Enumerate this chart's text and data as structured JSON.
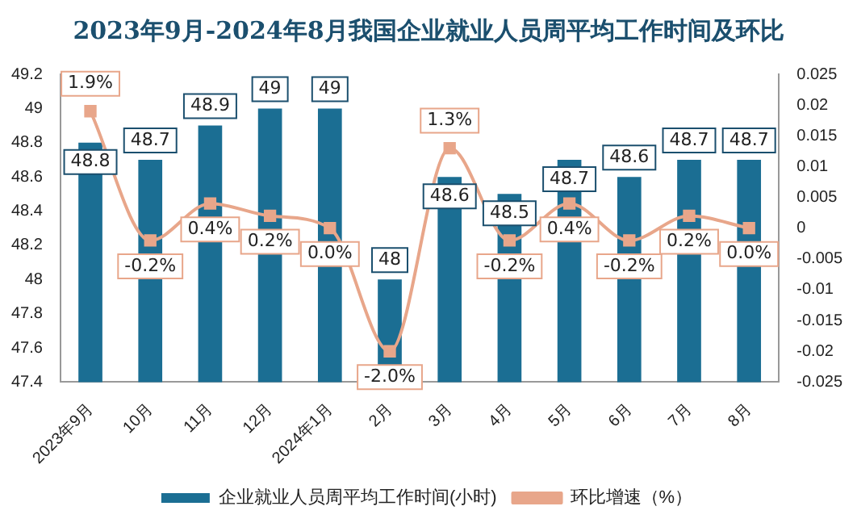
{
  "chart_data": {
    "type": "bar",
    "title": "2023年9月-2024年8月我国企业就业人员周平均工作时间及环比",
    "categories": [
      "2023年9月",
      "10月",
      "11月",
      "12月",
      "2024年1月",
      "2月",
      "3月",
      "4月",
      "5月",
      "6月",
      "7月",
      "8月"
    ],
    "series": [
      {
        "name": "企业就业人员周平均工作时间(小时)",
        "color": "#1b6e93",
        "values": [
          48.8,
          48.7,
          48.9,
          49,
          49,
          48,
          48.6,
          48.5,
          48.7,
          48.6,
          48.7,
          48.7
        ],
        "value_labels": [
          "48.8",
          "48.7",
          "48.9",
          "49",
          "49",
          "48",
          "48.6",
          "48.5",
          "48.7",
          "48.6",
          "48.7",
          "48.7"
        ]
      },
      {
        "name": "环比增速（%）",
        "type": "line",
        "axis": "y2",
        "color": "#e8a68a",
        "values": [
          0.019,
          -0.002,
          0.004,
          0.002,
          0,
          -0.02,
          0.013,
          -0.002,
          0.004,
          -0.002,
          0.002,
          0
        ],
        "value_labels": [
          "1.9%",
          "-0.2%",
          "0.4%",
          "0.2%",
          "0.0%",
          "-2.0%",
          "1.3%",
          "-0.2%",
          "0.4%",
          "-0.2%",
          "0.2%",
          "0.0%"
        ]
      }
    ],
    "ylim": [
      47.4,
      49.2
    ],
    "yticks": [
      47.4,
      47.6,
      47.8,
      48,
      48.2,
      48.4,
      48.6,
      48.8,
      49,
      49.2
    ],
    "y2lim": [
      -0.025,
      0.025
    ],
    "y2ticks": [
      -0.025,
      -0.02,
      -0.015,
      -0.01,
      -0.005,
      0,
      0.005,
      0.01,
      0.015,
      0.02,
      0.025
    ],
    "grid": false,
    "legend": "bottom",
    "marker": "square"
  }
}
